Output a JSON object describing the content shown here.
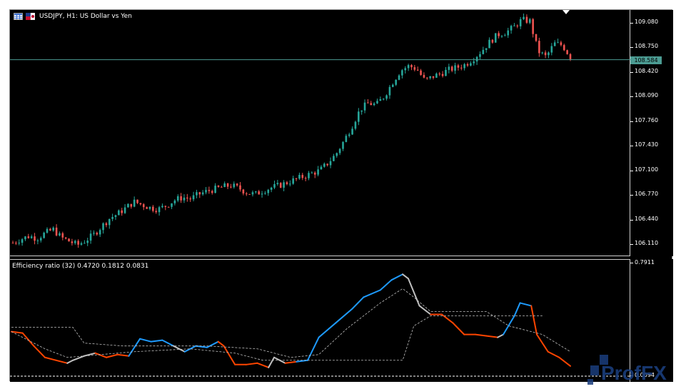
{
  "header": {
    "symbol_title": "USDJPY, H1:  US Dollar vs Yen"
  },
  "price_scale": {
    "ticks": [
      "109.080",
      "108.750",
      "108.420",
      "108.090",
      "107.760",
      "107.430",
      "107.100",
      "106.770",
      "106.440",
      "106.110"
    ],
    "current_price": "108.584"
  },
  "indicator": {
    "title": "Efficiency ratio (32) 0.4720 0.1812 0.0831",
    "scale_top": "0.7911",
    "scale_bottom": "0.0094"
  },
  "watermark": {
    "text": "ProfFX"
  },
  "colors": {
    "bull_candle": "#26a69a",
    "bear_candle": "#ef5350",
    "price_line": "#4c9c93",
    "er_up": "#1e9bff",
    "er_down": "#ff4500",
    "er_flat": "#c0c0c0",
    "band": "#c0c0c0"
  },
  "chart_data": {
    "type": "candlestick",
    "symbol": "USDJPY",
    "timeframe": "H1",
    "ylim": [
      105.95,
      109.25
    ],
    "current_price": 108.584,
    "close_series": [
      106.13,
      106.18,
      106.22,
      106.19,
      106.26,
      106.31,
      106.2,
      106.15,
      106.1,
      106.16,
      106.24,
      106.35,
      106.46,
      106.52,
      106.6,
      106.68,
      106.64,
      106.6,
      106.58,
      106.63,
      106.7,
      106.74,
      106.72,
      106.78,
      106.82,
      106.85,
      106.88,
      106.9,
      106.86,
      106.8,
      106.78,
      106.83,
      106.87,
      106.9,
      106.94,
      106.98,
      107.02,
      107.06,
      107.1,
      107.2,
      107.32,
      107.5,
      107.7,
      107.92,
      108.0,
      107.98,
      108.1,
      108.28,
      108.44,
      108.5,
      108.46,
      108.3,
      108.36,
      108.4,
      108.45,
      108.48,
      108.52,
      108.6,
      108.7,
      108.82,
      108.92,
      108.95,
      109.02,
      109.12,
      109.1,
      108.7,
      108.62,
      108.8,
      108.78,
      108.62
    ],
    "efficiency_ratio": {
      "period": 32,
      "values": [
        0.472,
        0.1812,
        0.0831
      ],
      "ylim": [
        0.0094,
        0.7911
      ]
    }
  }
}
